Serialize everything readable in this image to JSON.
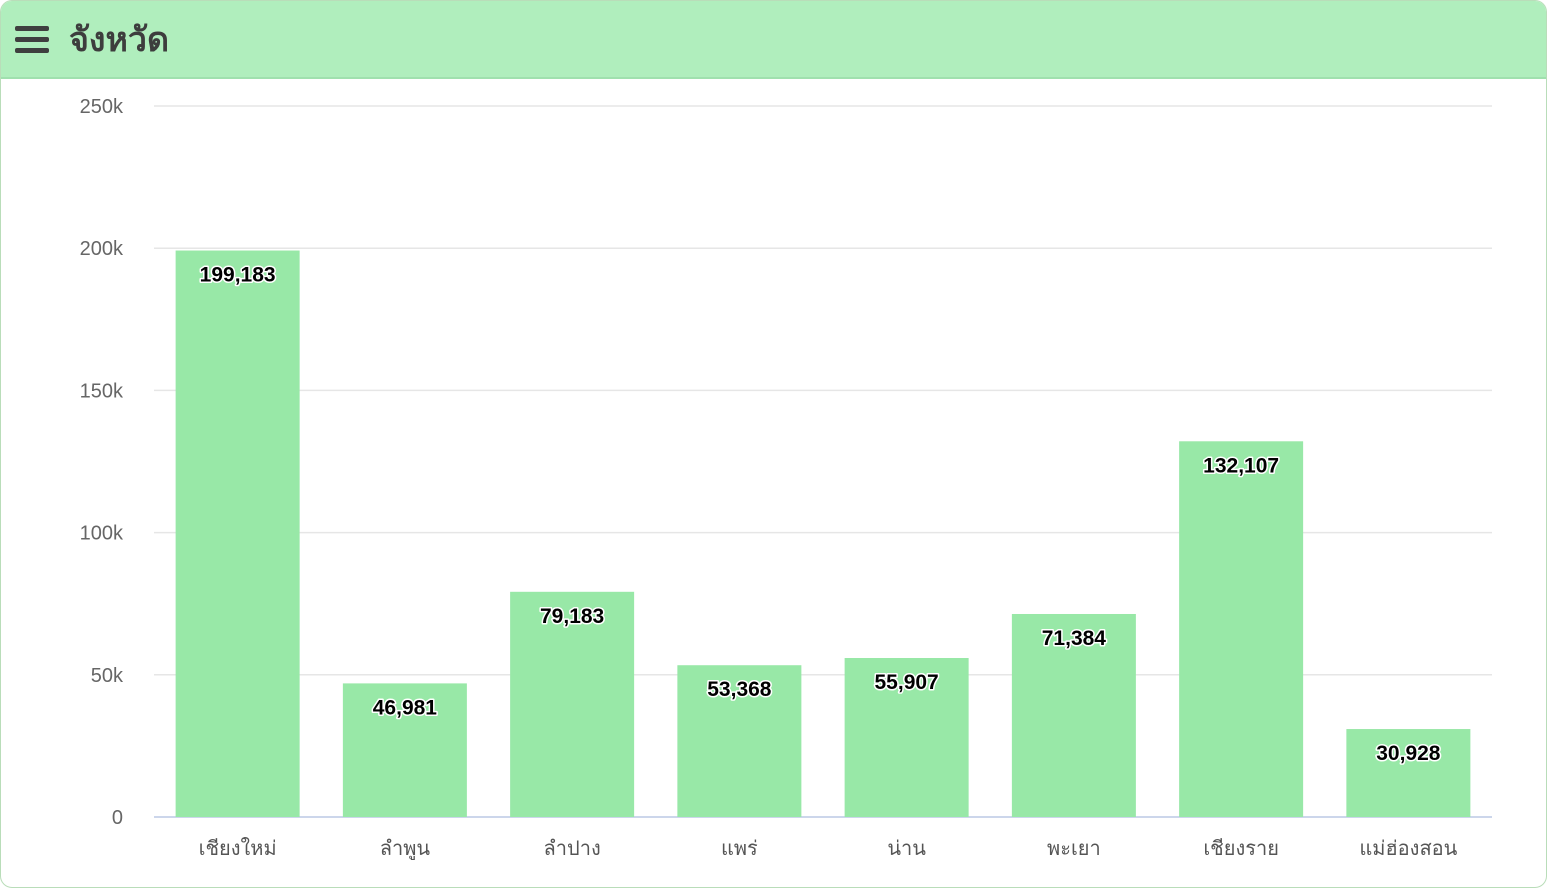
{
  "header": {
    "title": "จังหวัด",
    "menu_icon": "hamburger-menu-icon"
  },
  "colors": {
    "header_bg": "#b0eebd",
    "bar": "#98e8a7",
    "grid": "#e6e6e6",
    "axis": "#ccd6eb"
  },
  "chart_data": {
    "type": "bar",
    "title": "",
    "xlabel": "",
    "ylabel": "",
    "ylim": [
      0,
      250000
    ],
    "yticks": [
      {
        "value": 0,
        "label": "0"
      },
      {
        "value": 50000,
        "label": "50k"
      },
      {
        "value": 100000,
        "label": "100k"
      },
      {
        "value": 150000,
        "label": "150k"
      },
      {
        "value": 200000,
        "label": "200k"
      },
      {
        "value": 250000,
        "label": "250k"
      }
    ],
    "categories": [
      "เชียงใหม่",
      "ลำพูน",
      "ลำปาง",
      "แพร่",
      "น่าน",
      "พะเยา",
      "เชียงราย",
      "แม่ฮ่องสอน"
    ],
    "values": [
      199183,
      46981,
      79183,
      53368,
      55907,
      71384,
      132107,
      30928
    ],
    "value_labels": [
      "199,183",
      "46,981",
      "79,183",
      "53,368",
      "55,907",
      "71,384",
      "132,107",
      "30,928"
    ],
    "grid": true,
    "legend": "none"
  }
}
